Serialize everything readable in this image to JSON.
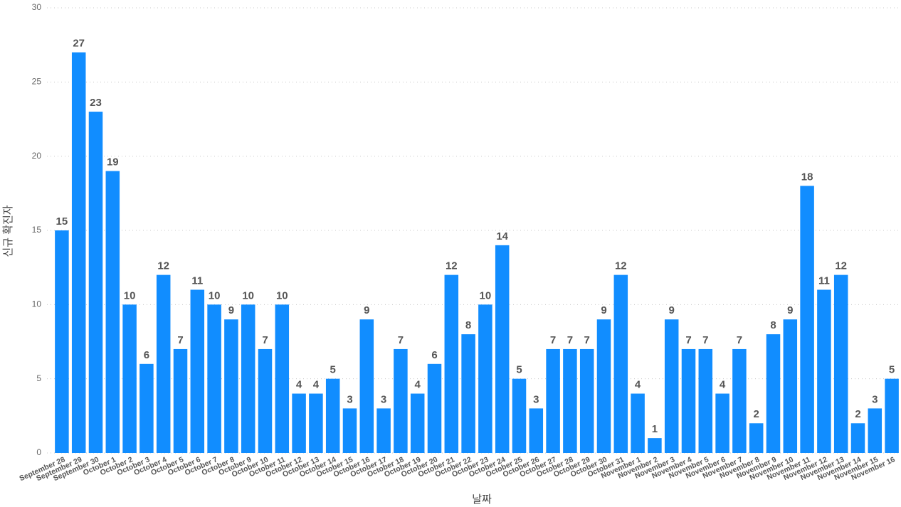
{
  "chart_data": {
    "type": "bar",
    "x_label": "날짜",
    "y_label": "신규 확진자",
    "categories": [
      "September 28",
      "September 29",
      "September 30",
      "October 1",
      "October 2",
      "October 3",
      "October 4",
      "October 5",
      "October 6",
      "October 7",
      "October 8",
      "October 9",
      "October 10",
      "October 11",
      "October 12",
      "October 13",
      "October 14",
      "October 15",
      "October 16",
      "October 17",
      "October 18",
      "October 19",
      "October 20",
      "October 21",
      "October 22",
      "October 23",
      "October 24",
      "October 25",
      "October 26",
      "October 27",
      "October 28",
      "October 29",
      "October 30",
      "October 31",
      "November 1",
      "November 2",
      "November 3",
      "November 4",
      "November 5",
      "November 6",
      "November 7",
      "November 8",
      "November 9",
      "November 10",
      "November 11",
      "November 12",
      "November 13",
      "November 14",
      "November 15",
      "November 16"
    ],
    "values": [
      15,
      27,
      23,
      19,
      10,
      6,
      12,
      7,
      11,
      10,
      9,
      10,
      7,
      10,
      4,
      4,
      5,
      3,
      9,
      3,
      7,
      4,
      6,
      12,
      8,
      10,
      14,
      5,
      3,
      7,
      7,
      7,
      9,
      12,
      4,
      1,
      9,
      7,
      7,
      4,
      7,
      2,
      8,
      9,
      18,
      11,
      12,
      2,
      3,
      5
    ],
    "color": "#118dff",
    "ylim": [
      0,
      30
    ],
    "yticks": [
      0,
      5,
      10,
      15,
      20,
      25,
      30
    ],
    "grid": true
  }
}
